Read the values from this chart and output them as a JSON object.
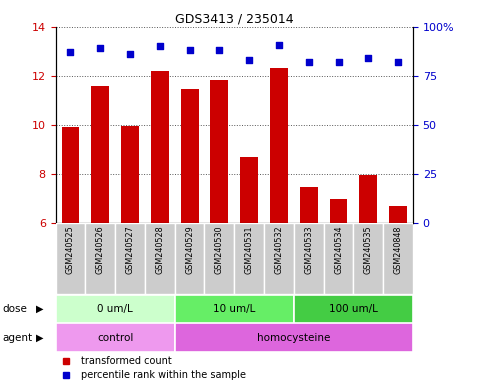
{
  "title": "GDS3413 / 235014",
  "samples": [
    "GSM240525",
    "GSM240526",
    "GSM240527",
    "GSM240528",
    "GSM240529",
    "GSM240530",
    "GSM240531",
    "GSM240532",
    "GSM240533",
    "GSM240534",
    "GSM240535",
    "GSM240848"
  ],
  "bar_values": [
    9.9,
    11.6,
    9.95,
    12.2,
    11.45,
    11.85,
    8.7,
    12.3,
    7.45,
    6.95,
    7.95,
    6.7
  ],
  "dot_values": [
    87,
    89,
    86,
    90,
    88,
    88,
    83,
    91,
    82,
    82,
    84,
    82
  ],
  "bar_color": "#cc0000",
  "dot_color": "#0000cc",
  "ylim_left": [
    6,
    14
  ],
  "ylim_right": [
    0,
    100
  ],
  "yticks_left": [
    6,
    8,
    10,
    12,
    14
  ],
  "yticks_right": [
    0,
    25,
    50,
    75,
    100
  ],
  "ytick_labels_right": [
    "0",
    "25",
    "50",
    "75",
    "100%"
  ],
  "dose_groups": [
    {
      "label": "0 um/L",
      "start": 0,
      "end": 4,
      "color": "#ccffcc"
    },
    {
      "label": "10 um/L",
      "start": 4,
      "end": 8,
      "color": "#66ee66"
    },
    {
      "label": "100 um/L",
      "start": 8,
      "end": 12,
      "color": "#44cc44"
    }
  ],
  "agent_groups": [
    {
      "label": "control",
      "start": 0,
      "end": 4,
      "color": "#ee99ee"
    },
    {
      "label": "homocysteine",
      "start": 4,
      "end": 12,
      "color": "#dd66dd"
    }
  ],
  "dose_label": "dose",
  "agent_label": "agent",
  "legend_bar": "transformed count",
  "legend_dot": "percentile rank within the sample",
  "grid_color": "#555555",
  "bg_color": "#ffffff",
  "tick_area_bg": "#cccccc",
  "bar_width": 0.6
}
